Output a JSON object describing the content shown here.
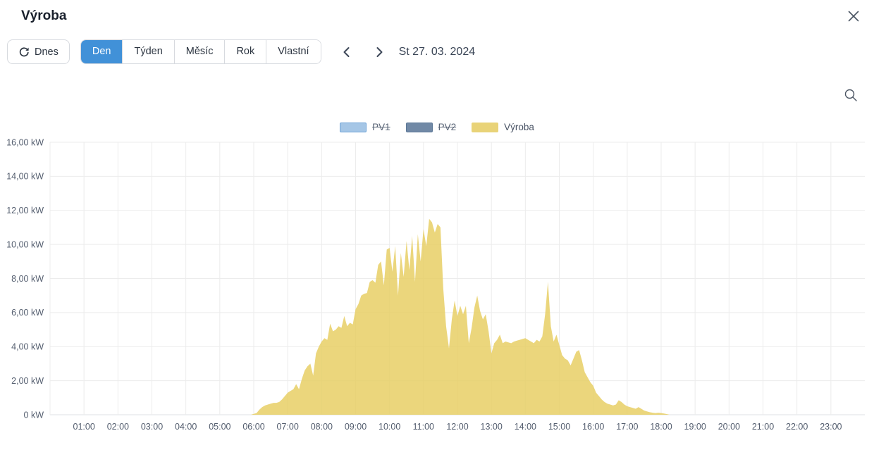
{
  "header": {
    "title": "Výroba",
    "close_icon": "close-icon"
  },
  "toolbar": {
    "today_button": {
      "label": "Dnes",
      "icon": "refresh-icon"
    },
    "view_tabs": [
      {
        "label": "Den",
        "active": true
      },
      {
        "label": "Týden",
        "active": false
      },
      {
        "label": "Měsíc",
        "active": false
      },
      {
        "label": "Rok",
        "active": false
      },
      {
        "label": "Vlastní",
        "active": false
      }
    ],
    "prev_icon": "chevron-left-icon",
    "next_icon": "chevron-right-icon",
    "date_label": "St 27. 03. 2024"
  },
  "tools": {
    "zoom_icon": "magnifier-icon"
  },
  "legend": {
    "items": [
      {
        "label": "PV1",
        "fill": "#a5c6e6",
        "border": "#70a3d7",
        "disabled": true
      },
      {
        "label": "PV2",
        "fill": "#7189a6",
        "border": "#5c7897",
        "disabled": true
      },
      {
        "label": "Výroba",
        "fill": "#e9d378",
        "border": "#e9d378",
        "disabled": false
      }
    ]
  },
  "colors": {
    "accent_blue": "#4191d8",
    "border": "#d7dadf",
    "text": "#2b3440",
    "axis_text": "#535d6e",
    "grid": "#ececec",
    "baseline": "#dfe2e6",
    "area_fill": "#e6cd5f"
  },
  "chart_data": {
    "type": "area",
    "title": "Výroba",
    "xlabel": "",
    "ylabel": "kW",
    "ylim": [
      0,
      16
    ],
    "y_tick_step": 2,
    "grid": true,
    "legend_position": "top",
    "x_start": "00:00",
    "x_step_minutes": 5,
    "x_tick_labels": [
      "01:00",
      "02:00",
      "03:00",
      "04:00",
      "05:00",
      "06:00",
      "07:00",
      "08:00",
      "09:00",
      "10:00",
      "11:00",
      "12:00",
      "13:00",
      "14:00",
      "15:00",
      "16:00",
      "17:00",
      "18:00",
      "19:00",
      "20:00",
      "21:00",
      "22:00",
      "23:00"
    ],
    "y_tick_labels": [
      "0 kW",
      "2,00 kW",
      "4,00 kW",
      "6,00 kW",
      "8,00 kW",
      "10,00 kW",
      "12,00 kW",
      "14,00 kW",
      "16,00 kW"
    ],
    "series": [
      {
        "name": "PV1",
        "color": "#a5c6e6",
        "hidden": true,
        "values": []
      },
      {
        "name": "PV2",
        "color": "#7189a6",
        "hidden": true,
        "values": []
      },
      {
        "name": "Výroba",
        "color": "#e6cd5f",
        "fill_opacity": 0.82,
        "hidden": false,
        "values": [
          0,
          0,
          0,
          0,
          0,
          0,
          0,
          0,
          0,
          0,
          0,
          0,
          0,
          0,
          0,
          0,
          0,
          0,
          0,
          0,
          0,
          0,
          0,
          0,
          0,
          0,
          0,
          0,
          0,
          0,
          0,
          0,
          0,
          0,
          0,
          0,
          0,
          0,
          0,
          0,
          0,
          0,
          0,
          0,
          0,
          0,
          0,
          0,
          0,
          0,
          0,
          0,
          0,
          0,
          0,
          0,
          0,
          0,
          0,
          0,
          0,
          0,
          0,
          0,
          0,
          0,
          0,
          0,
          0,
          0,
          0,
          0,
          0.05,
          0.1,
          0.3,
          0.45,
          0.55,
          0.6,
          0.65,
          0.7,
          0.7,
          0.75,
          0.9,
          1.1,
          1.3,
          1.4,
          1.5,
          1.8,
          1.5,
          2.1,
          2.6,
          2.85,
          3.0,
          2.3,
          3.6,
          4.0,
          4.3,
          4.5,
          4.4,
          5.35,
          4.9,
          5.0,
          5.2,
          5.1,
          5.8,
          5.2,
          5.4,
          5.3,
          6.2,
          6.5,
          7.0,
          7.1,
          7.15,
          7.8,
          7.9,
          7.75,
          8.8,
          9.0,
          7.6,
          9.7,
          9.8,
          8.4,
          9.9,
          7.0,
          9.5,
          8.1,
          10.2,
          8.5,
          10.5,
          7.8,
          10.6,
          9.0,
          10.9,
          9.9,
          11.5,
          11.3,
          10.7,
          11.2,
          11.0,
          7.4,
          5.2,
          3.9,
          5.6,
          6.7,
          5.8,
          6.4,
          5.9,
          6.4,
          4.2,
          5.1,
          6.3,
          7.0,
          6.1,
          5.6,
          5.9,
          4.9,
          3.6,
          4.2,
          4.4,
          4.7,
          4.2,
          4.3,
          4.25,
          4.2,
          4.3,
          4.35,
          4.4,
          4.45,
          4.5,
          4.4,
          4.3,
          4.2,
          4.4,
          4.3,
          4.6,
          5.9,
          7.8,
          5.2,
          4.3,
          4.7,
          4.1,
          3.5,
          3.3,
          3.2,
          2.9,
          3.3,
          3.7,
          3.8,
          3.2,
          2.5,
          2.2,
          1.9,
          1.7,
          1.3,
          1.1,
          0.9,
          0.75,
          0.65,
          0.6,
          0.55,
          0.6,
          0.85,
          0.75,
          0.6,
          0.5,
          0.45,
          0.4,
          0.35,
          0.45,
          0.35,
          0.25,
          0.2,
          0.15,
          0.12,
          0.1,
          0.12,
          0.1,
          0.07,
          0.04,
          0,
          0,
          0,
          0,
          0,
          0,
          0,
          0,
          0,
          0,
          0,
          0,
          0,
          0,
          0,
          0,
          0,
          0,
          0,
          0,
          0,
          0,
          0,
          0,
          0,
          0,
          0,
          0,
          0,
          0,
          0,
          0,
          0,
          0,
          0,
          0,
          0,
          0,
          0,
          0,
          0,
          0,
          0,
          0,
          0,
          0,
          0,
          0,
          0,
          0,
          0,
          0,
          0,
          0,
          0,
          0,
          0,
          0,
          0,
          0,
          0,
          0,
          0,
          0,
          0,
          0,
          0,
          0,
          0
        ]
      }
    ]
  }
}
